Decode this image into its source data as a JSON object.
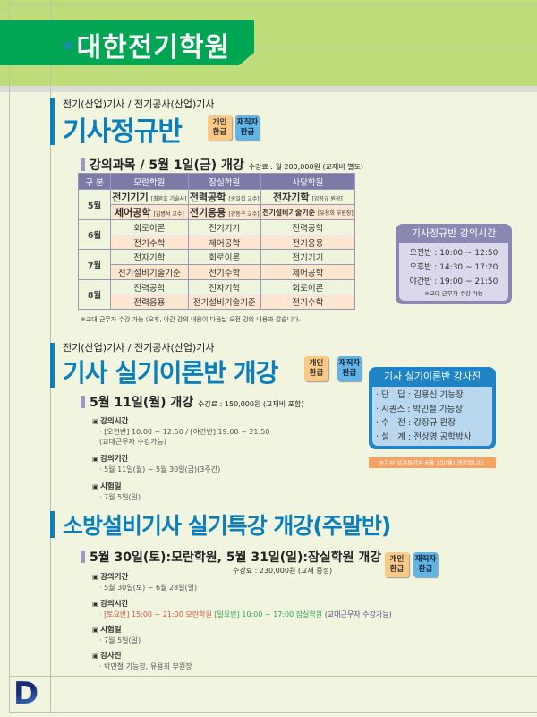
{
  "header": {
    "title": "대한전기학원",
    "star": "*"
  },
  "badges": {
    "personal": "개인\n환급",
    "worker": "재직자\n환급"
  },
  "section1": {
    "subtitle": "전기(산업)기사 / 전기공사(산업)기사",
    "title": "기사정규반",
    "heading": "강의과목 / 5월 1일(금) 개강",
    "fee": "수강료 : 월 200,000원 (교재비 별도)",
    "table": {
      "headers": [
        "구 분",
        "모란학원",
        "잠실학원",
        "사당학원"
      ],
      "rows": [
        {
          "month": "5월",
          "cells": [
            {
              "s": "전기기기",
              "t": "[최완호 기술사]"
            },
            {
              "s": "전력공학",
              "t": "[송일섭 교수]"
            },
            {
              "s": "전자기학",
              "t": "[강장규 원장]"
            }
          ]
        },
        {
          "cells": [
            {
              "s": "제어공학",
              "t": "[김병석 교수]"
            },
            {
              "s": "전기응용",
              "t": "[강동구 교수]"
            },
            {
              "s": "전기설비기술기준",
              "t": "[유용희 부원장]"
            }
          ]
        },
        {
          "month": "6월",
          "cells": [
            {
              "s": "회로이론"
            },
            {
              "s": "전기기기"
            },
            {
              "s": "전력공학"
            }
          ]
        },
        {
          "cells": [
            {
              "s": "전기수학"
            },
            {
              "s": "제어공학"
            },
            {
              "s": "전기응용"
            }
          ]
        },
        {
          "month": "7월",
          "cells": [
            {
              "s": "전자기학"
            },
            {
              "s": "회로이론"
            },
            {
              "s": "전기기기"
            }
          ]
        },
        {
          "cells": [
            {
              "s": "전기설비기술기준"
            },
            {
              "s": "전기수학"
            },
            {
              "s": "제어공학"
            }
          ]
        },
        {
          "month": "8월",
          "cells": [
            {
              "s": "전력공학"
            },
            {
              "s": "전자기학"
            },
            {
              "s": "회로이론"
            }
          ]
        },
        {
          "cells": [
            {
              "s": "전력응용"
            },
            {
              "s": "전기설비기술기준"
            },
            {
              "s": "전기수학"
            }
          ]
        }
      ]
    },
    "note": "※교대 근무자 수강 가능 (오후, 야간 강의 내용이 다음날 오전 강의 내용과 같습니다.",
    "timebox": {
      "title": "기사정규반 강의시간",
      "lines": [
        "오전반 : 10:00 ~ 12:50",
        "오후반 : 14:30 ~ 17:20",
        "야간반 : 19:00 ~ 21:50"
      ],
      "note": "※교대 근무자 수강 가능"
    }
  },
  "section2": {
    "subtitle": "전기(산업)기사 / 전기공사(산업)기사",
    "title": "기사 실기이론반 개강",
    "heading": "5월 11일(월) 개강",
    "fee": "수강료 : 150,000원 (교재비 포함)",
    "details": [
      {
        "h": "강의시간",
        "v": [
          "· [오전반] 10:00 ~ 12:50 / [야간반] 19:00 ~ 21:50",
          "(교대근무자 수강가능)"
        ]
      },
      {
        "h": "강의기간",
        "v": [
          "· 5월 11일(월) ~ 5월 30일(금)(3주간)"
        ]
      },
      {
        "h": "시험일",
        "v": [
          "· 7월 5일(일)"
        ]
      }
    ],
    "staffbox": {
      "title": "기사 실기이론반 강사진",
      "lines": [
        "· 단　답 : 김용신 기능장",
        "· 시퀀스 : 박민철 기능장",
        "· 수　전 : 강장규 원장",
        "· 설　계 : 전상영 공학박사"
      ]
    },
    "notice": "※기사 실기특강은 6월 1일(월) 개강합니다."
  },
  "section3": {
    "title": "소방설비기사 실기특강 개강(주말반)",
    "heading": "5월 30일(토):모란학원, 5월 31일(일):잠실학원 개강",
    "fee": "수강료 : 230,000원 (교재 증정)",
    "period": {
      "h": "강의기간",
      "v": "· 5월 30일(토) ~ 6월 28일(일)"
    },
    "time": {
      "h": "강의시간",
      "sat": "· [토요반] 15:00 ~ 21:00 모란학원",
      "sun": "[일요반] 10:00 ~ 17:00 잠실학원",
      "shift": "(교대근무자 수강가능)"
    },
    "exam": {
      "h": "시험일",
      "v": "· 7월 5일(일)"
    },
    "staff": {
      "h": "강사진",
      "v": "· 박민철 기능장, 유용희 부원장"
    }
  },
  "logo": {
    "letter": "D"
  },
  "colors": {
    "green": "#00a651",
    "blue": "#0a7fbd",
    "purple": "#7d7aa8",
    "red": "#e0503a",
    "greenText": "#2fa84f",
    "navy": "#4a4e8a"
  }
}
